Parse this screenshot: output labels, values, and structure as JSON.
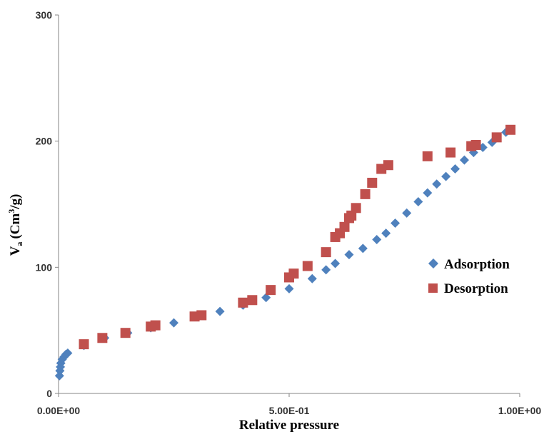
{
  "chart_data": {
    "type": "scatter",
    "xlabel": "Relative pressure",
    "ylabel_main": "V",
    "ylabel_sub": "a",
    "ylabel_unit_pre": "(Cm",
    "ylabel_unit_sup": "3",
    "ylabel_unit_post": "/g)",
    "xlim": [
      0,
      1
    ],
    "ylim": [
      0,
      300
    ],
    "x_ticks": [
      {
        "value": 0,
        "label": "0.00E+00"
      },
      {
        "value": 0.5,
        "label": "5.00E-01"
      },
      {
        "value": 1.0,
        "label": "1.00E+00"
      }
    ],
    "y_ticks": [
      {
        "value": 0,
        "label": "0"
      },
      {
        "value": 100,
        "label": "100"
      },
      {
        "value": 200,
        "label": "200"
      },
      {
        "value": 300,
        "label": "300"
      }
    ],
    "grid": false,
    "legend_position": "right",
    "series": [
      {
        "name": "Adsorption",
        "marker": "diamond",
        "color": "#4F81BD",
        "points": [
          [
            0.002,
            14
          ],
          [
            0.003,
            18
          ],
          [
            0.004,
            21
          ],
          [
            0.005,
            24
          ],
          [
            0.008,
            27
          ],
          [
            0.012,
            29
          ],
          [
            0.016,
            31
          ],
          [
            0.02,
            32
          ],
          [
            0.055,
            38
          ],
          [
            0.1,
            44
          ],
          [
            0.15,
            48
          ],
          [
            0.2,
            52
          ],
          [
            0.25,
            56
          ],
          [
            0.3,
            61
          ],
          [
            0.35,
            65
          ],
          [
            0.4,
            70
          ],
          [
            0.45,
            76
          ],
          [
            0.5,
            83
          ],
          [
            0.55,
            91
          ],
          [
            0.58,
            98
          ],
          [
            0.6,
            103
          ],
          [
            0.63,
            110
          ],
          [
            0.66,
            115
          ],
          [
            0.69,
            122
          ],
          [
            0.71,
            127
          ],
          [
            0.73,
            135
          ],
          [
            0.755,
            143
          ],
          [
            0.78,
            152
          ],
          [
            0.8,
            159
          ],
          [
            0.82,
            166
          ],
          [
            0.84,
            172
          ],
          [
            0.86,
            178
          ],
          [
            0.88,
            185
          ],
          [
            0.9,
            191
          ],
          [
            0.92,
            195
          ],
          [
            0.94,
            199
          ],
          [
            0.97,
            207
          ]
        ]
      },
      {
        "name": "Desorption",
        "marker": "square",
        "color": "#C0504D",
        "points": [
          [
            0.055,
            39
          ],
          [
            0.095,
            44
          ],
          [
            0.145,
            48
          ],
          [
            0.2,
            53
          ],
          [
            0.21,
            54
          ],
          [
            0.295,
            61
          ],
          [
            0.31,
            62
          ],
          [
            0.4,
            72
          ],
          [
            0.42,
            74
          ],
          [
            0.46,
            82
          ],
          [
            0.5,
            92
          ],
          [
            0.51,
            95
          ],
          [
            0.54,
            101
          ],
          [
            0.58,
            112
          ],
          [
            0.6,
            124
          ],
          [
            0.61,
            127
          ],
          [
            0.62,
            132
          ],
          [
            0.63,
            139
          ],
          [
            0.635,
            141
          ],
          [
            0.645,
            147
          ],
          [
            0.665,
            158
          ],
          [
            0.68,
            167
          ],
          [
            0.7,
            178
          ],
          [
            0.715,
            181
          ],
          [
            0.8,
            188
          ],
          [
            0.85,
            191
          ],
          [
            0.895,
            196
          ],
          [
            0.905,
            197
          ],
          [
            0.95,
            203
          ],
          [
            0.98,
            209
          ]
        ]
      }
    ]
  }
}
